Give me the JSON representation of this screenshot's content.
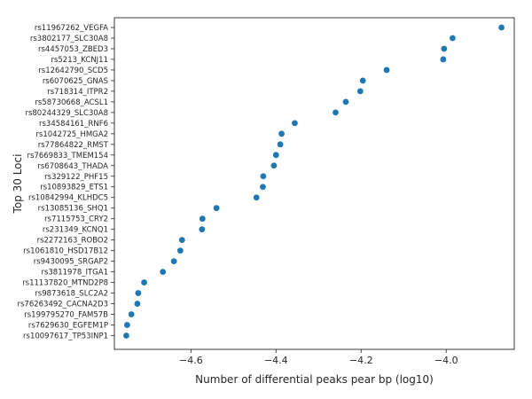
{
  "chart_data": {
    "type": "scatter",
    "title": "",
    "xlabel": "Number of differential peaks pear bp (log10)",
    "ylabel": "Top 30 Loci",
    "xlim": [
      -4.78,
      -3.84
    ],
    "xticks": [
      -4.6,
      -4.4,
      -4.2,
      -4.0
    ],
    "xtick_labels": [
      "−4.6",
      "−4.4",
      "−4.2",
      "−4.0"
    ],
    "grid": false,
    "color": "#1f77b4",
    "categories": [
      "rs11967262_VEGFA",
      "rs3802177_SLC30A8",
      "rs4457053_ZBED3",
      "rs5213_KCNJ11",
      "rs12642790_SCD5",
      "rs6070625_GNAS",
      "rs718314_ITPR2",
      "rs58730668_ACSL1",
      "rs80244329_SLC30A8",
      "rs34584161_RNF6",
      "rs1042725_HMGA2",
      "rs77864822_RMST",
      "rs7669833_TMEM154",
      "rs6708643_THADA",
      "rs329122_PHF15",
      "rs10893829_ETS1",
      "rs10842994_KLHDC5",
      "rs13085136_SHQ1",
      "rs7115753_CRY2",
      "rs231349_KCNQ1",
      "rs2272163_ROBO2",
      "rs1061810_HSD17B12",
      "rs9430095_SRGAP2",
      "rs3811978_ITGA1",
      "rs11137820_MTND2P8",
      "rs9873618_SLC2A2",
      "rs76263492_CACNA2D3",
      "rs199795270_FAM57B",
      "rs7629630_EGFEM1P",
      "rs10097617_TP53INP1"
    ],
    "values": [
      -3.87,
      -3.985,
      -4.005,
      -4.007,
      -4.14,
      -4.196,
      -4.202,
      -4.236,
      -4.26,
      -4.356,
      -4.387,
      -4.39,
      -4.4,
      -4.405,
      -4.43,
      -4.431,
      -4.446,
      -4.54,
      -4.573,
      -4.574,
      -4.621,
      -4.625,
      -4.64,
      -4.666,
      -4.71,
      -4.724,
      -4.726,
      -4.74,
      -4.75,
      -4.752
    ]
  }
}
